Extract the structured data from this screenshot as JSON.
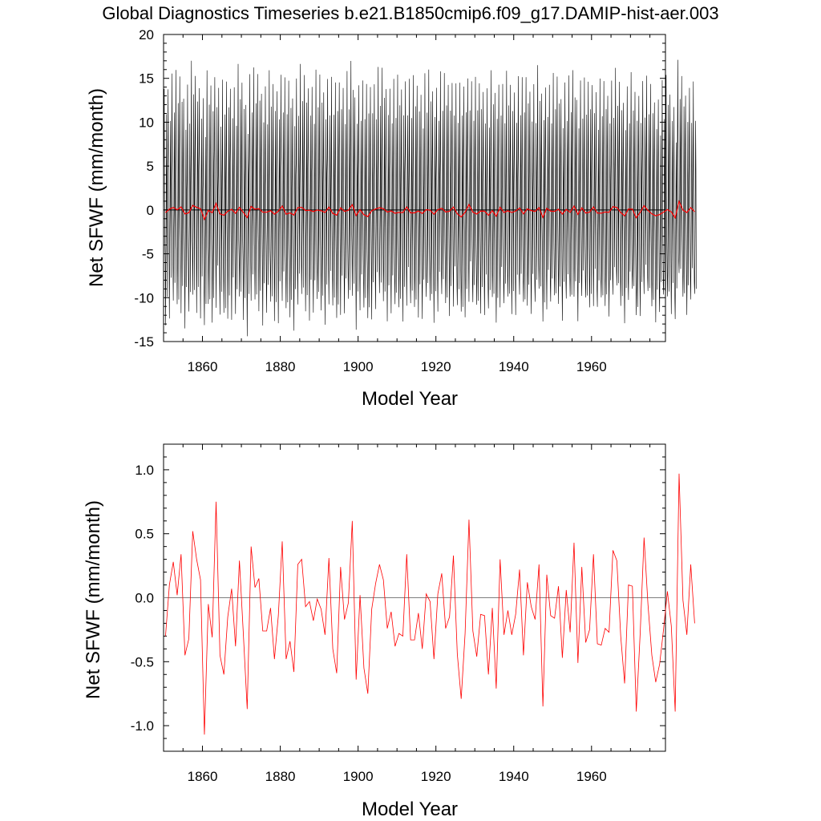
{
  "title": "Global Diagnostics Timeseries b.e21.B1850cmip6.f09_g17.DAMIP-hist-aer.003",
  "colors": {
    "monthly": "#000000",
    "annual": "#ff0000",
    "zero_line": "#7f7f7f",
    "axis": "#000000"
  },
  "chart_data": [
    {
      "type": "line",
      "panel": "top",
      "xlabel": "Model Year",
      "ylabel": "Net SFWF (mm/month)",
      "xlim": [
        1850,
        1979
      ],
      "ylim": [
        -15,
        20
      ],
      "xticks": [
        1860,
        1880,
        1900,
        1920,
        1940,
        1960
      ],
      "xtick_labels": [
        "1860",
        "1880",
        "1900",
        "1920",
        "1940",
        "1960"
      ],
      "yticks": [
        -15,
        -10,
        -5,
        0,
        5,
        10,
        15,
        20
      ],
      "ytick_labels": [
        "-15",
        "-10",
        "-5",
        "0",
        "5",
        "10",
        "15",
        "20"
      ],
      "reference_line": 0,
      "series": [
        {
          "role": "monthly",
          "x_start": 1850,
          "months_per_year": 12,
          "cycle": [
            2.0,
            7.0,
            14.2,
            3.0,
            -3.0,
            -6.5,
            -11.0,
            -5.5,
            1.0,
            10.5,
            4.0,
            -9.0
          ],
          "annual_anomaly": "from annual series"
        },
        {
          "role": "annual",
          "note": "same values as bottom panel annual series"
        }
      ]
    },
    {
      "type": "line",
      "panel": "bottom",
      "xlabel": "Model Year",
      "ylabel": "Net SFWF (mm/month)",
      "xlim": [
        1850,
        1979
      ],
      "ylim": [
        -1.2,
        1.2
      ],
      "xticks": [
        1860,
        1880,
        1900,
        1920,
        1940,
        1960
      ],
      "xtick_labels": [
        "1860",
        "1880",
        "1900",
        "1920",
        "1940",
        "1960"
      ],
      "yticks": [
        -1.0,
        -0.5,
        0.0,
        0.5,
        1.0
      ],
      "ytick_labels": [
        "-1.0",
        "-0.5",
        "0.0",
        "0.5",
        "1.0"
      ],
      "reference_line": 0,
      "series": [
        {
          "role": "annual",
          "x_start": 1850,
          "values": [
            -0.3,
            0.1,
            0.28,
            0.02,
            0.34,
            -0.45,
            -0.32,
            0.52,
            0.3,
            0.14,
            -1.07,
            -0.05,
            -0.31,
            0.75,
            -0.45,
            -0.6,
            -0.15,
            0.07,
            -0.38,
            0.29,
            -0.28,
            -0.87,
            0.4,
            0.08,
            0.15,
            -0.26,
            -0.26,
            -0.08,
            -0.48,
            -0.14,
            0.44,
            -0.48,
            -0.34,
            -0.58,
            0.26,
            0.3,
            -0.07,
            -0.03,
            -0.18,
            -0.01,
            -0.09,
            -0.29,
            0.31,
            -0.4,
            -0.59,
            0.24,
            -0.17,
            -0.04,
            0.6,
            -0.64,
            0.02,
            -0.55,
            -0.75,
            -0.09,
            0.11,
            0.26,
            0.14,
            -0.24,
            -0.11,
            -0.38,
            -0.28,
            -0.3,
            0.34,
            -0.33,
            -0.33,
            -0.12,
            -0.4,
            0.03,
            -0.03,
            -0.48,
            0.03,
            0.19,
            -0.24,
            -0.15,
            0.33,
            -0.44,
            -0.79,
            -0.28,
            0.61,
            -0.26,
            -0.46,
            -0.13,
            -0.14,
            -0.6,
            -0.08,
            -0.71,
            0.3,
            -0.29,
            -0.1,
            -0.29,
            -0.13,
            0.22,
            -0.45,
            0.12,
            -0.07,
            -0.17,
            0.26,
            -0.85,
            0.18,
            -0.14,
            -0.16,
            0.09,
            -0.47,
            0.06,
            -0.27,
            0.43,
            -0.51,
            0.24,
            -0.35,
            -0.25,
            0.34,
            -0.36,
            -0.37,
            -0.24,
            -0.27,
            0.37,
            0.29,
            -0.3,
            -0.67,
            0.1,
            0.09,
            -0.89,
            -0.28,
            0.47,
            -0.05,
            -0.45,
            -0.66,
            -0.52,
            -0.25,
            0.05,
            -0.22,
            -0.89,
            0.97,
            -0.02,
            -0.29,
            0.26,
            -0.2
          ]
        }
      ]
    }
  ]
}
